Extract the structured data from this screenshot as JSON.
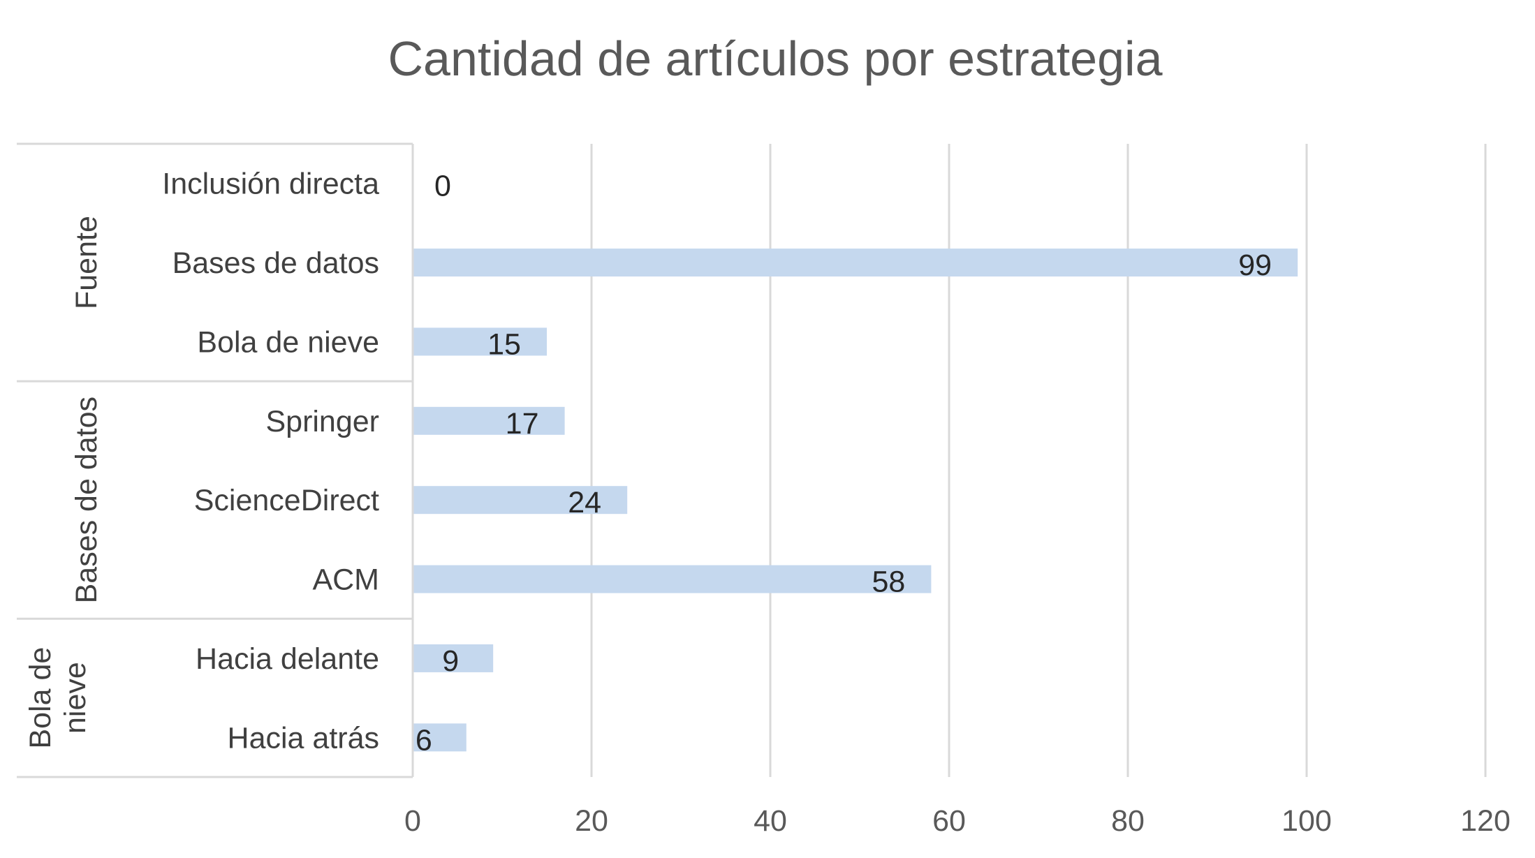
{
  "chart_data": {
    "type": "bar",
    "orientation": "horizontal",
    "title": "Cantidad de artículos por estrategia",
    "xlabel": "",
    "ylabel": "",
    "xlim": [
      0,
      120
    ],
    "x_ticks": [
      "0",
      "20",
      "40",
      "60",
      "80",
      "100",
      "120"
    ],
    "grid": true,
    "legend": "none",
    "bar_color": "#c5d8ee",
    "groups": [
      {
        "name": "Fuente",
        "categories": [
          "Inclusión directa",
          "Bases de datos",
          "Bola de nieve"
        ],
        "values": [
          0,
          99,
          15
        ]
      },
      {
        "name": "Bases de datos",
        "categories": [
          "Springer",
          "ScienceDirect",
          "ACM"
        ],
        "values": [
          17,
          24,
          58
        ]
      },
      {
        "name": "Bola de nieve",
        "categories": [
          "Hacia delante",
          "Hacia atrás"
        ],
        "values": [
          9,
          6
        ]
      }
    ]
  }
}
